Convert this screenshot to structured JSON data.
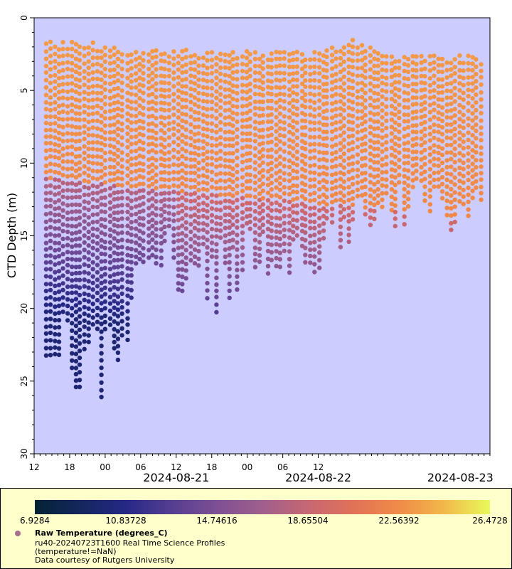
{
  "chart_data": {
    "type": "scatter",
    "title": "",
    "xlabel": "",
    "ylabel": "CTD Depth (m)",
    "y_axis_inverted": true,
    "ylim": [
      0,
      30
    ],
    "yticks": [
      "0",
      "5",
      "10",
      "15",
      "20",
      "25",
      "30"
    ],
    "x_time_range": [
      "2024-08-20T12:00",
      "2024-08-23T17:00"
    ],
    "xticks": [
      "12",
      "18",
      "00",
      "06",
      "12",
      "18",
      "00",
      "06",
      "12"
    ],
    "date_labels": [
      "2024-08-21",
      "2024-08-22",
      "2024-08-23"
    ],
    "background_color": "#ccccff",
    "color_variable": "Raw Temperature (degrees_C)",
    "color_range": [
      6.9284,
      26.4728
    ],
    "colorbar_ticks": [
      "6.9284",
      "10.83728",
      "14.74616",
      "18.65504",
      "22.56392",
      "26.4728"
    ],
    "profile_summary": [
      {
        "time": "2024-08-20T14:00",
        "min_depth": 1.6,
        "max_depth": 24.3
      },
      {
        "time": "2024-08-20T18:00",
        "min_depth": 1.6,
        "max_depth": 26.0
      },
      {
        "time": "2024-08-20T22:00",
        "min_depth": 1.6,
        "max_depth": 24.6
      },
      {
        "time": "2024-08-21T00:00",
        "min_depth": 2.0,
        "max_depth": 26.2
      },
      {
        "time": "2024-08-21T06:00",
        "min_depth": 2.2,
        "max_depth": 18.6
      },
      {
        "time": "2024-08-21T12:00",
        "min_depth": 2.2,
        "max_depth": 18.0
      },
      {
        "time": "2024-08-21T18:00",
        "min_depth": 2.2,
        "max_depth": 20.0
      },
      {
        "time": "2024-08-22T00:00",
        "min_depth": 2.3,
        "max_depth": 17.5
      },
      {
        "time": "2024-08-22T06:00",
        "min_depth": 2.3,
        "max_depth": 18.3
      },
      {
        "time": "2024-08-22T12:00",
        "min_depth": 2.3,
        "max_depth": 16.5
      },
      {
        "time": "2024-08-22T18:00",
        "min_depth": 1.4,
        "max_depth": 15.0
      },
      {
        "time": "2024-08-23T00:00",
        "min_depth": 2.5,
        "max_depth": 14.5
      },
      {
        "time": "2024-08-23T06:00",
        "min_depth": 2.5,
        "max_depth": 13.5
      },
      {
        "time": "2024-08-23T12:00",
        "min_depth": 2.6,
        "max_depth": 14.5
      }
    ]
  },
  "legend": {
    "title": "Raw Temperature (degrees_C)",
    "line1": "ru40-20240723T1600 Real Time Science Profiles",
    "line2": "(temperature!=NaN)",
    "line3": "Data courtesy of Rutgers University"
  }
}
